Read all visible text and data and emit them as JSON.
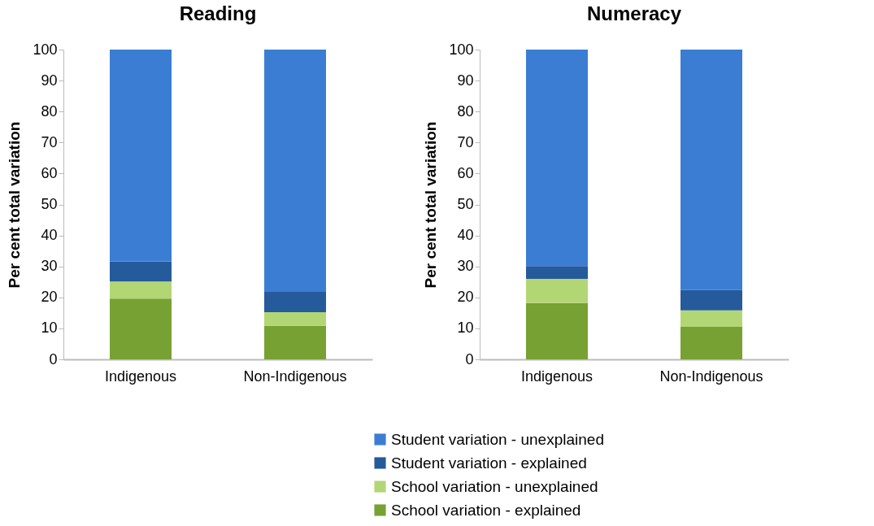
{
  "chart_data": [
    {
      "type": "bar",
      "title": "Reading",
      "ylabel": "Per cent total variation",
      "categories": [
        "Indigenous",
        "Non-Indigenous"
      ],
      "stacked": true,
      "ylim": [
        0,
        100
      ],
      "yticks": [
        0,
        10,
        20,
        30,
        40,
        50,
        60,
        70,
        80,
        90,
        100
      ],
      "grid": false,
      "legend": "bottom",
      "series": [
        {
          "name": "School variation - explained",
          "color": "#77a132",
          "values": [
            19.6,
            10.8
          ]
        },
        {
          "name": "School variation - unexplained",
          "color": "#b3d675",
          "values": [
            5.5,
            4.4
          ]
        },
        {
          "name": "Student variation - explained",
          "color": "#255a9b",
          "values": [
            6.5,
            6.6
          ]
        },
        {
          "name": "Student variation - unexplained",
          "color": "#3a7dd3",
          "values": [
            68.4,
            78.2
          ]
        }
      ]
    },
    {
      "type": "bar",
      "title": "Numeracy",
      "ylabel": "Per cent total variation",
      "categories": [
        "Indigenous",
        "Non-Indigenous"
      ],
      "stacked": true,
      "ylim": [
        0,
        100
      ],
      "yticks": [
        0,
        10,
        20,
        30,
        40,
        50,
        60,
        70,
        80,
        90,
        100
      ],
      "grid": false,
      "legend": "bottom",
      "series": [
        {
          "name": "School variation - explained",
          "color": "#77a132",
          "values": [
            18.2,
            10.5
          ]
        },
        {
          "name": "School variation - unexplained",
          "color": "#b3d675",
          "values": [
            7.8,
            5.3
          ]
        },
        {
          "name": "Student variation - explained",
          "color": "#255a9b",
          "values": [
            4.1,
            6.6
          ]
        },
        {
          "name": "Student variation - unexplained",
          "color": "#3a7dd3",
          "values": [
            69.9,
            77.6
          ]
        }
      ]
    }
  ]
}
